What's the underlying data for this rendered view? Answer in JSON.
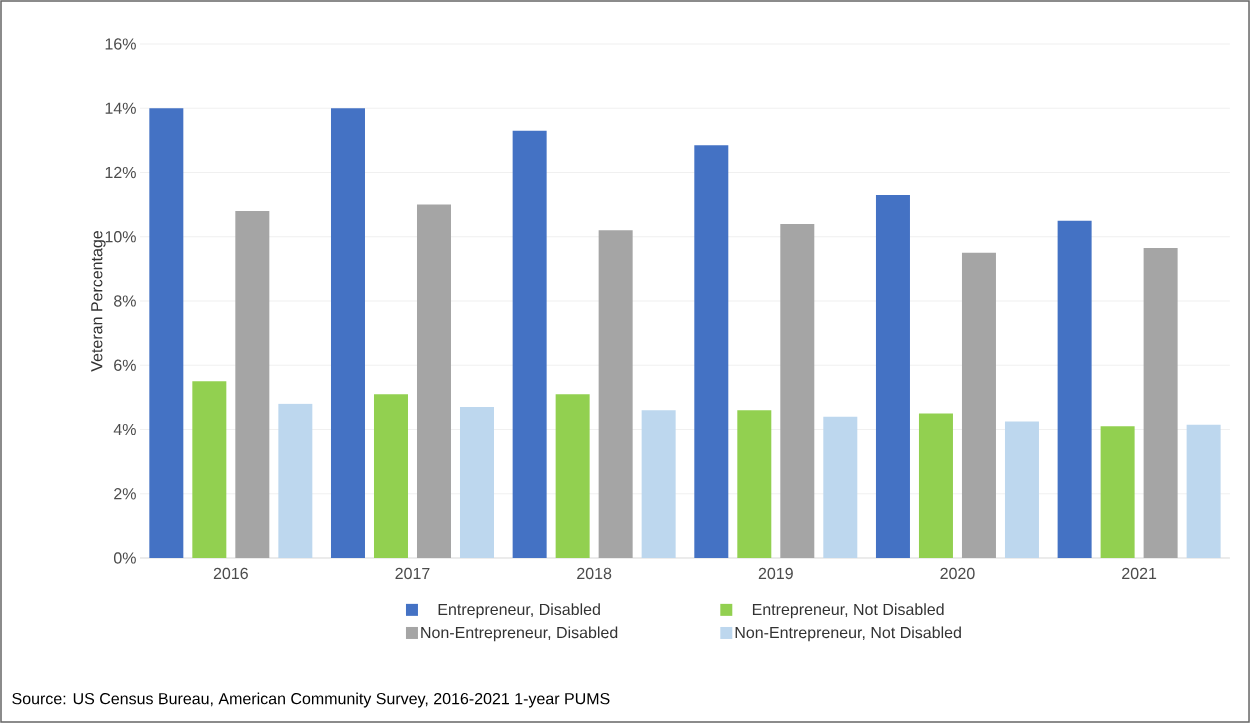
{
  "chart_data": {
    "type": "bar",
    "ylabel": "Veteran Percentage",
    "categories": [
      "2016",
      "2017",
      "2018",
      "2019",
      "2020",
      "2021"
    ],
    "series": [
      {
        "name": "Entrepreneur, Disabled",
        "color": "#4472c4",
        "values": [
          14.0,
          14.0,
          13.3,
          12.85,
          11.3,
          10.5
        ]
      },
      {
        "name": "Entrepreneur, Not Disabled",
        "color": "#92d050",
        "values": [
          5.5,
          5.1,
          5.1,
          4.6,
          4.5,
          4.1
        ]
      },
      {
        "name": "Non-Entrepreneur, Disabled",
        "color": "#a5a5a5",
        "values": [
          10.8,
          11.0,
          10.2,
          10.4,
          9.5,
          9.65
        ]
      },
      {
        "name": "Non-Entrepreneur, Not Disabled",
        "color": "#bdd7ee",
        "values": [
          4.8,
          4.7,
          4.6,
          4.4,
          4.25,
          4.15
        ]
      }
    ],
    "ylim": [
      0,
      16
    ],
    "yticks": [
      {
        "value": 0,
        "label": "0%"
      },
      {
        "value": 2,
        "label": "2%"
      },
      {
        "value": 4,
        "label": "4%"
      },
      {
        "value": 6,
        "label": "6%"
      },
      {
        "value": 8,
        "label": "8%"
      },
      {
        "value": 10,
        "label": "10%"
      },
      {
        "value": 12,
        "label": "12%"
      },
      {
        "value": 14,
        "label": "14%"
      },
      {
        "value": 16,
        "label": "16%"
      }
    ],
    "grid": "y",
    "legend": "bottom",
    "annotations": [
      "Source: US Census Bureau, American Community Survey, 2016-2021 1-year PUMS"
    ]
  }
}
